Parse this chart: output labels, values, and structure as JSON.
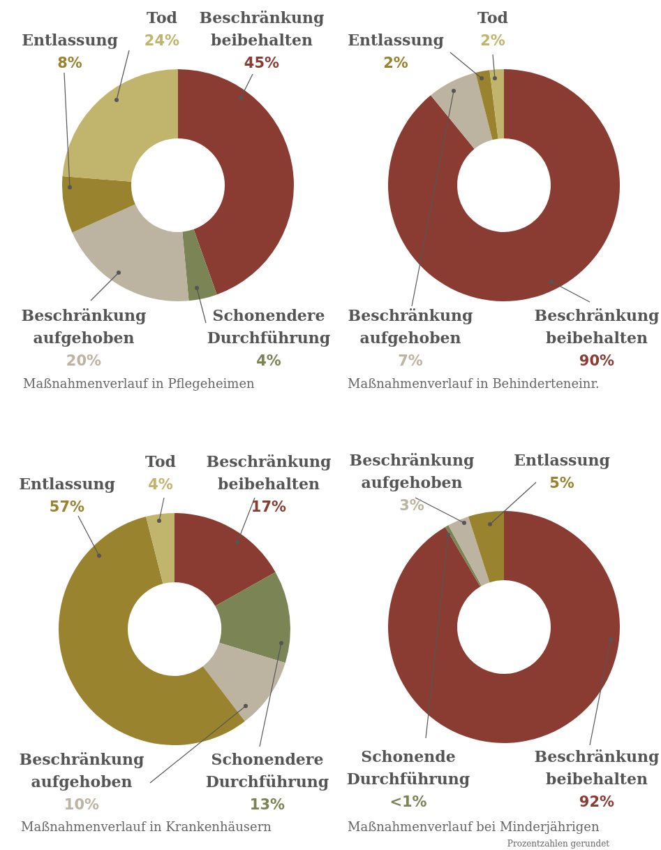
{
  "chart_data": [
    {
      "type": "donut",
      "title": "Maßnahmenverlauf in Pflegeheimen",
      "categories": [
        "Beschränkung beibehalten",
        "Schonendere Durchführung",
        "Beschränkung aufgehoben",
        "Entlassung",
        "Tod"
      ],
      "values": [
        45,
        4,
        20,
        8,
        24
      ],
      "colors": [
        "#8b3c32",
        "#7a8455",
        "#bdb3a1",
        "#9a832e",
        "#c1b56d"
      ],
      "value_labels": [
        "45%",
        "4%",
        "20%",
        "8%",
        "24%"
      ]
    },
    {
      "type": "donut",
      "title": "Maßnahmenverlauf in Behinderteneinr.",
      "categories": [
        "Beschränkung beibehalten",
        "Beschränkung aufgehoben",
        "Entlassung",
        "Tod"
      ],
      "values": [
        90,
        7,
        2,
        2
      ],
      "colors": [
        "#8b3c32",
        "#bdb3a1",
        "#9a832e",
        "#c1b56d"
      ],
      "value_labels": [
        "90%",
        "7%",
        "2%",
        "2%"
      ]
    },
    {
      "type": "donut",
      "title": "Maßnahmenverlauf in Krankenhäusern",
      "categories": [
        "Beschränkung beibehalten",
        "Schonendere Durchführung",
        "Beschränkung aufgehoben",
        "Entlassung",
        "Tod"
      ],
      "values": [
        17,
        13,
        10,
        57,
        4
      ],
      "colors": [
        "#8b3c32",
        "#7a8455",
        "#bdb3a1",
        "#9a832e",
        "#c1b56d"
      ],
      "value_labels": [
        "17%",
        "13%",
        "10%",
        "57%",
        "4%"
      ]
    },
    {
      "type": "donut",
      "title": "Maßnahmenverlauf bei Minderjährigen",
      "categories": [
        "Beschränkung beibehalten",
        "Schonende Durchführung",
        "Beschränkung aufgehoben",
        "Entlassung"
      ],
      "values": [
        92,
        0.5,
        3,
        5
      ],
      "colors": [
        "#8b3c32",
        "#7a8455",
        "#bdb3a1",
        "#9a832e"
      ],
      "value_labels": [
        "92%",
        "<1%",
        "3%",
        "5%"
      ],
      "annotations": [
        "Prozentzahlen gerundet"
      ]
    }
  ]
}
